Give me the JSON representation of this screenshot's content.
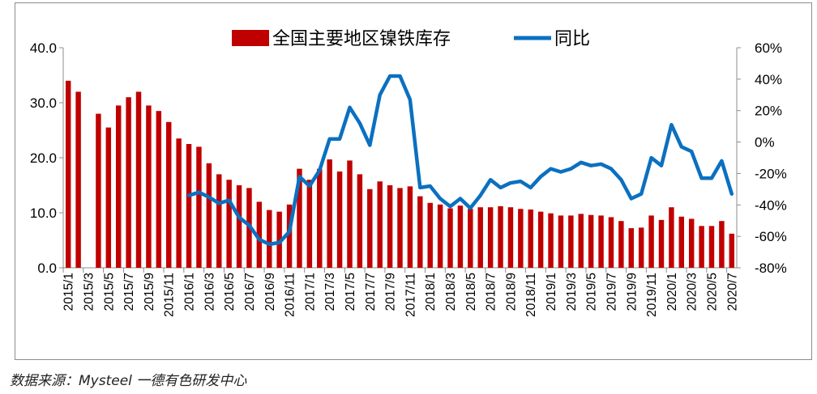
{
  "source": "数据来源：Mysteel  一德有色研发中心",
  "colors": {
    "bar": "#c00000",
    "line": "#0b70c0",
    "axis": "#8c8c8c"
  },
  "chart_data": {
    "type": "bar+line",
    "legend_position": "top",
    "grid": false,
    "categories": [
      "2015/1",
      "2015/2",
      "2015/3",
      "2015/4",
      "2015/5",
      "2015/6",
      "2015/7",
      "2015/8",
      "2015/9",
      "2015/10",
      "2015/11",
      "2015/12",
      "2016/1",
      "2016/2",
      "2016/3",
      "2016/4",
      "2016/5",
      "2016/6",
      "2016/7",
      "2016/8",
      "2016/9",
      "2016/10",
      "2016/11",
      "2016/12",
      "2017/1",
      "2017/2",
      "2017/3",
      "2017/4",
      "2017/5",
      "2017/6",
      "2017/7",
      "2017/8",
      "2017/9",
      "2017/10",
      "2017/11",
      "2017/12",
      "2018/1",
      "2018/2",
      "2018/3",
      "2018/4",
      "2018/5",
      "2018/6",
      "2018/7",
      "2018/8",
      "2018/9",
      "2018/10",
      "2018/11",
      "2018/12",
      "2019/1",
      "2019/2",
      "2019/3",
      "2019/4",
      "2019/5",
      "2019/6",
      "2019/7",
      "2019/8",
      "2019/9",
      "2019/10",
      "2019/11",
      "2019/12",
      "2020/1",
      "2020/2",
      "2020/3",
      "2020/4",
      "2020/5",
      "2020/6",
      "2020/7"
    ],
    "x_tick_labels": [
      "2015/1",
      "2015/3",
      "2015/5",
      "2015/7",
      "2015/9",
      "2015/11",
      "2016/1",
      "2016/3",
      "2016/5",
      "2016/7",
      "2016/9",
      "2016/11",
      "2017/1",
      "2017/3",
      "2017/5",
      "2017/7",
      "2017/9",
      "2017/11",
      "2018/1",
      "2018/3",
      "2018/5",
      "2018/7",
      "2018/9",
      "2018/11",
      "2019/1",
      "2019/3",
      "2019/5",
      "2019/7",
      "2019/9",
      "2019/11",
      "2020/1",
      "2020/3",
      "2020/5",
      "2020/7"
    ],
    "y_left": {
      "ylim": [
        0,
        40
      ],
      "ticks": [
        "0.0",
        "10.0",
        "20.0",
        "30.0",
        "40.0"
      ]
    },
    "y_right": {
      "ylim": [
        -80,
        60
      ],
      "ticks": [
        "-80%",
        "-60%",
        "-40%",
        "-20%",
        "0%",
        "20%",
        "40%",
        "60%"
      ]
    },
    "series": [
      {
        "name": "全国主要地区镍铁库存",
        "type": "bar",
        "axis": "left",
        "values": [
          34.0,
          32.0,
          null,
          28.0,
          25.5,
          29.5,
          31.0,
          32.0,
          29.5,
          28.5,
          26.5,
          23.5,
          22.5,
          22.0,
          19.0,
          17.0,
          16.0,
          15.0,
          14.5,
          12.0,
          10.5,
          10.2,
          11.5,
          18.0,
          16.0,
          18.0,
          19.7,
          17.5,
          19.5,
          17.0,
          14.3,
          15.7,
          15.0,
          14.5,
          14.8,
          13.0,
          11.8,
          11.5,
          10.8,
          11.3,
          10.7,
          11.0,
          11.0,
          11.2,
          11.0,
          10.7,
          10.6,
          10.2,
          9.9,
          9.5,
          9.5,
          9.8,
          9.6,
          9.5,
          9.2,
          8.5,
          7.2,
          7.3,
          9.5,
          8.7,
          11.0,
          9.3,
          8.9,
          7.6,
          7.6,
          8.5,
          6.2
        ]
      },
      {
        "name": "同比",
        "type": "line",
        "axis": "right",
        "values": [
          null,
          null,
          null,
          null,
          null,
          null,
          null,
          null,
          null,
          null,
          null,
          null,
          -34,
          -32,
          -35,
          -39,
          -37,
          -48,
          -53,
          -62,
          -65,
          -64,
          -57,
          -22,
          -28,
          -18,
          2,
          2,
          22,
          12,
          -2,
          30,
          42,
          42,
          27,
          -29,
          -28,
          -36,
          -41,
          -36,
          -42,
          -34,
          -24,
          -29,
          -26,
          -25,
          -29,
          -22,
          -17,
          -19,
          -17,
          -13,
          -15,
          -14,
          -17,
          -24,
          -36,
          -33,
          -10,
          -15,
          11,
          -3,
          -6,
          -23,
          -23,
          -12,
          -33
        ]
      }
    ]
  }
}
